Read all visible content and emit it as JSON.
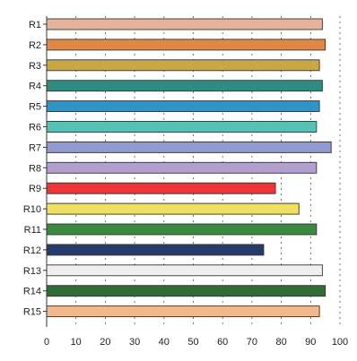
{
  "chart_data": {
    "type": "bar",
    "orientation": "horizontal",
    "title": "",
    "xlabel": "",
    "ylabel": "",
    "xlim": [
      0,
      100
    ],
    "x_ticks": [
      0,
      10,
      20,
      30,
      40,
      50,
      60,
      70,
      80,
      90,
      100
    ],
    "x_tick_labels": [
      "0",
      "10",
      "20",
      "30",
      "40",
      "50",
      "60",
      "70",
      "80",
      "90",
      "100"
    ],
    "grid": "vertical-dashed",
    "legend": "none",
    "categories": [
      "R1",
      "R2",
      "R3",
      "R4",
      "R5",
      "R6",
      "R7",
      "R8",
      "R9",
      "R10",
      "R11",
      "R12",
      "R13",
      "R14",
      "R15"
    ],
    "values": [
      94,
      95,
      93,
      94,
      93,
      92,
      97,
      92,
      78,
      86,
      92,
      74,
      94,
      95,
      93
    ],
    "colors": [
      "#e6b39a",
      "#e08848",
      "#c9a744",
      "#2f8c7f",
      "#2e95c9",
      "#56c0b6",
      "#8f9ad2",
      "#b39fcf",
      "#ee3535",
      "#efe060",
      "#3c8a3f",
      "#243b6b",
      "#efefef",
      "#2e6e34",
      "#f2b98c"
    ]
  }
}
